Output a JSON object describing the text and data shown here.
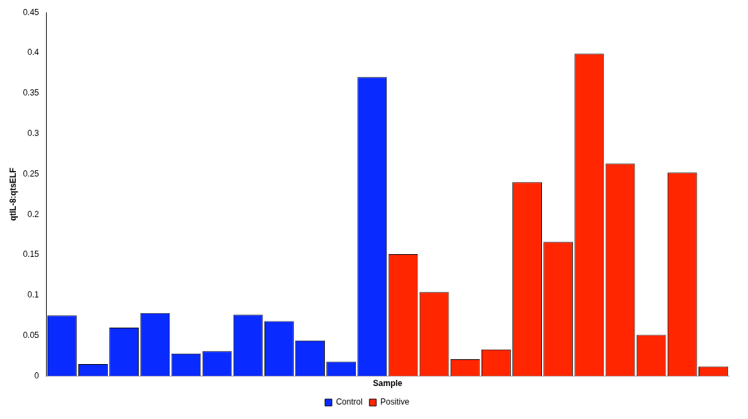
{
  "chart_data": {
    "type": "bar",
    "xlabel": "Sample",
    "ylabel": "qtIL-8:qtsELF",
    "categories": [
      null,
      null,
      null,
      null,
      null,
      null,
      null,
      null,
      null,
      null,
      null,
      null,
      null,
      null,
      null,
      null,
      null,
      null,
      null,
      null,
      null,
      null
    ],
    "series": [
      {
        "name": "Control",
        "color": "#0a2bff",
        "values": [
          0.075,
          0.015,
          0.06,
          0.078,
          0.028,
          0.031,
          0.076,
          0.068,
          0.044,
          0.018,
          0.37,
          null,
          null,
          null,
          null,
          null,
          null,
          null,
          null,
          null,
          null,
          null
        ]
      },
      {
        "name": "Positive",
        "color": "#ff2600",
        "values": [
          null,
          null,
          null,
          null,
          null,
          null,
          null,
          null,
          null,
          null,
          null,
          0.151,
          0.104,
          0.021,
          0.033,
          0.24,
          0.166,
          0.399,
          0.263,
          0.051,
          0.252,
          0.012
        ]
      }
    ],
    "ylim": [
      0,
      0.45
    ],
    "yticks": [
      0,
      0.05,
      0.1,
      0.15,
      0.2,
      0.25,
      0.3,
      0.35,
      0.4,
      0.45
    ],
    "grid": false,
    "legend": "bottom"
  }
}
